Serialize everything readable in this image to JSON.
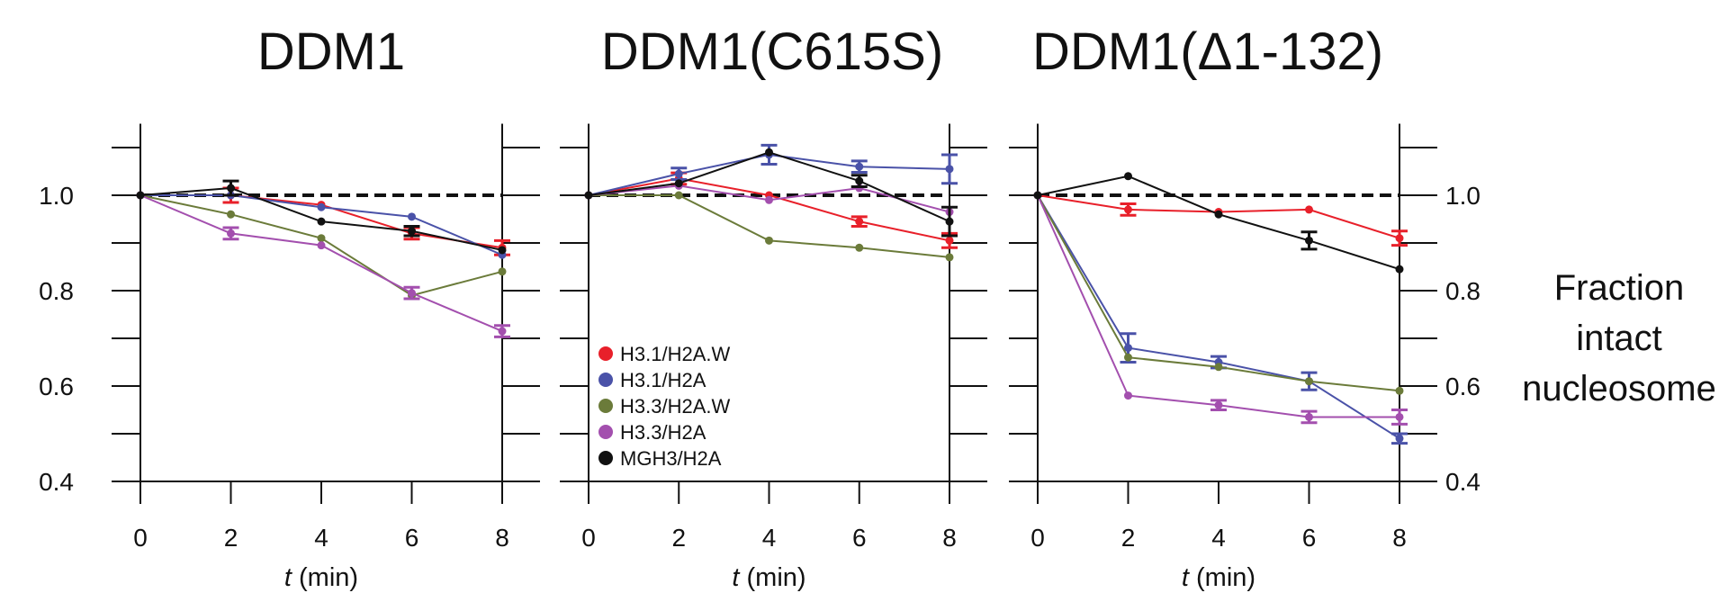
{
  "chart_data": {
    "type": "line",
    "ylabel": "Fraction intact nucleosome",
    "ylabel_lines": [
      "Fraction",
      "intact",
      "nucleosome"
    ],
    "xlabel_var": "t",
    "xlabel_unit": " (min)",
    "x_ticks": [
      0,
      2,
      4,
      6,
      8
    ],
    "y_ticks": [
      0.4,
      0.6,
      0.8,
      1.0
    ],
    "y_tick_labels": [
      "0.4",
      "0.6",
      "0.8",
      "1.0"
    ],
    "xlim": [
      0,
      8
    ],
    "ylim": [
      0.4,
      1.15
    ],
    "reference_line": 1.0,
    "legend": [
      {
        "name": "H3.1/H2A.W",
        "color": "#e8202a"
      },
      {
        "name": "H3.1/H2A",
        "color": "#4a52a8"
      },
      {
        "name": "H3.3/H2A.W",
        "color": "#6b7b3a"
      },
      {
        "name": "H3.3/H2A",
        "color": "#a34fae"
      },
      {
        "name": "MGH3/H2A",
        "color": "#111111"
      }
    ],
    "panels": [
      {
        "title": "DDM1",
        "series": [
          {
            "name": "H3.1/H2A.W",
            "x": [
              0,
              2,
              4,
              6,
              8
            ],
            "y": [
              1.0,
              1.0,
              0.98,
              0.92,
              0.89
            ],
            "err": [
              0,
              0.015,
              0,
              0.012,
              0.015
            ]
          },
          {
            "name": "H3.1/H2A",
            "x": [
              0,
              2,
              4,
              6,
              8
            ],
            "y": [
              1.0,
              1.0,
              0.975,
              0.955,
              0.875
            ],
            "err": [
              0,
              0,
              0,
              0,
              0
            ]
          },
          {
            "name": "H3.3/H2A.W",
            "x": [
              0,
              2,
              4,
              6,
              8
            ],
            "y": [
              1.0,
              0.96,
              0.91,
              0.79,
              0.84
            ],
            "err": [
              0,
              0,
              0,
              0,
              0
            ]
          },
          {
            "name": "H3.3/H2A",
            "x": [
              0,
              2,
              4,
              6,
              8
            ],
            "y": [
              1.0,
              0.92,
              0.895,
              0.795,
              0.715
            ],
            "err": [
              0,
              0.012,
              0,
              0.012,
              0.012
            ]
          },
          {
            "name": "MGH3/H2A",
            "x": [
              0,
              2,
              4,
              6,
              8
            ],
            "y": [
              1.0,
              1.015,
              0.945,
              0.925,
              0.885
            ],
            "err": [
              0,
              0.015,
              0,
              0.01,
              0
            ]
          }
        ]
      },
      {
        "title": "DDM1(C615S)",
        "series": [
          {
            "name": "H3.1/H2A.W",
            "x": [
              0,
              2,
              4,
              6,
              8
            ],
            "y": [
              1.0,
              1.035,
              1.0,
              0.945,
              0.905
            ],
            "err": [
              0,
              0.012,
              0,
              0.01,
              0.015
            ]
          },
          {
            "name": "H3.1/H2A",
            "x": [
              0,
              2,
              4,
              6,
              8
            ],
            "y": [
              1.0,
              1.045,
              1.085,
              1.06,
              1.055
            ],
            "err": [
              0,
              0.012,
              0.02,
              0.012,
              0.03
            ]
          },
          {
            "name": "H3.3/H2A.W",
            "x": [
              0,
              2,
              4,
              6,
              8
            ],
            "y": [
              1.0,
              1.0,
              0.905,
              0.89,
              0.87
            ],
            "err": [
              0,
              0,
              0,
              0,
              0
            ]
          },
          {
            "name": "H3.3/H2A",
            "x": [
              0,
              2,
              4,
              6,
              8
            ],
            "y": [
              1.0,
              1.02,
              0.99,
              1.015,
              0.965
            ],
            "err": [
              0,
              0,
              0,
              0,
              0
            ]
          },
          {
            "name": "MGH3/H2A",
            "x": [
              0,
              2,
              4,
              6,
              8
            ],
            "y": [
              1.0,
              1.025,
              1.09,
              1.03,
              0.945
            ],
            "err": [
              0,
              0,
              0,
              0.012,
              0.03
            ]
          }
        ]
      },
      {
        "title": "DDM1(Δ1-132)",
        "series": [
          {
            "name": "H3.1/H2A.W",
            "x": [
              0,
              2,
              4,
              6,
              8
            ],
            "y": [
              1.0,
              0.97,
              0.965,
              0.97,
              0.91
            ],
            "err": [
              0,
              0.012,
              0,
              0,
              0.015
            ]
          },
          {
            "name": "H3.1/H2A",
            "x": [
              0,
              2,
              4,
              6,
              8
            ],
            "y": [
              1.0,
              0.68,
              0.65,
              0.61,
              0.49
            ],
            "err": [
              0,
              0.03,
              0.012,
              0.018,
              0.01
            ]
          },
          {
            "name": "H3.3/H2A.W",
            "x": [
              0,
              2,
              4,
              6,
              8
            ],
            "y": [
              1.0,
              0.66,
              0.64,
              0.61,
              0.59
            ],
            "err": [
              0,
              0,
              0,
              0,
              0
            ]
          },
          {
            "name": "H3.3/H2A",
            "x": [
              0,
              2,
              4,
              6,
              8
            ],
            "y": [
              1.0,
              0.58,
              0.56,
              0.535,
              0.535
            ],
            "err": [
              0,
              0,
              0.01,
              0.012,
              0.015
            ]
          },
          {
            "name": "MGH3/H2A",
            "x": [
              0,
              2,
              4,
              6,
              8
            ],
            "y": [
              1.0,
              1.04,
              0.96,
              0.905,
              0.845
            ],
            "err": [
              0,
              0,
              0,
              0.018,
              0
            ]
          }
        ]
      }
    ]
  }
}
